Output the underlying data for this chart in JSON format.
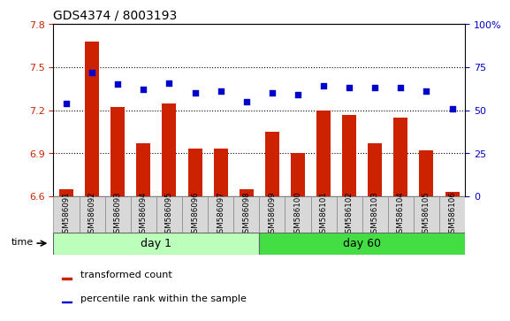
{
  "title": "GDS4374 / 8003193",
  "samples": [
    "GSM586091",
    "GSM586092",
    "GSM586093",
    "GSM586094",
    "GSM586095",
    "GSM586096",
    "GSM586097",
    "GSM586098",
    "GSM586099",
    "GSM586100",
    "GSM586101",
    "GSM586102",
    "GSM586103",
    "GSM586104",
    "GSM586105",
    "GSM586106"
  ],
  "bar_values": [
    6.65,
    7.68,
    7.22,
    6.97,
    7.25,
    6.93,
    6.93,
    6.65,
    7.05,
    6.9,
    7.2,
    7.17,
    6.97,
    7.15,
    6.92,
    6.63
  ],
  "dot_values": [
    54,
    72,
    65,
    62,
    66,
    60,
    61,
    55,
    60,
    59,
    64,
    63,
    63,
    63,
    61,
    51
  ],
  "day1_samples": 8,
  "day60_samples": 8,
  "ylim_left": [
    6.6,
    7.8
  ],
  "ylim_right": [
    0,
    100
  ],
  "yticks_left": [
    6.6,
    6.9,
    7.2,
    7.5,
    7.8
  ],
  "yticks_right": [
    0,
    25,
    50,
    75,
    100
  ],
  "bar_color": "#cc2200",
  "dot_color": "#0000cc",
  "bar_bottom": 6.6,
  "day1_label": "day 1",
  "day60_label": "day 60",
  "day1_color": "#bbffbb",
  "day60_color": "#44dd44",
  "plot_bg": "#ffffff",
  "legend_bar_label": "transformed count",
  "legend_dot_label": "percentile rank within the sample",
  "title_fontsize": 10,
  "tick_fontsize": 8,
  "label_fontsize": 9
}
